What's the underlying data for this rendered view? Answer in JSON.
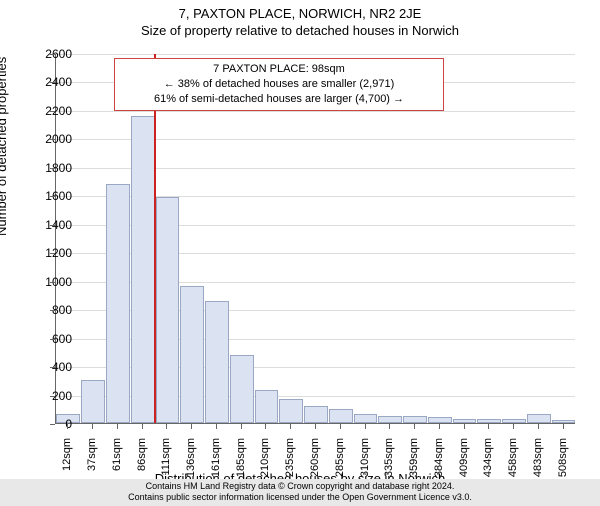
{
  "title": "7, PAXTON PLACE, NORWICH, NR2 2JE",
  "subtitle": "Size of property relative to detached houses in Norwich",
  "chart": {
    "type": "histogram",
    "ylabel": "Number of detached properties",
    "xlabel": "Distribution of detached houses by size in Norwich",
    "ylim": [
      0,
      2600
    ],
    "ytick_step": 200,
    "bar_fill": "#dbe2f1",
    "bar_stroke": "#9aa8c4",
    "grid_color": "#dddddd",
    "axis_color": "#666666",
    "background_color": "#ffffff",
    "categories": [
      "12sqm",
      "37sqm",
      "61sqm",
      "86sqm",
      "111sqm",
      "136sqm",
      "161sqm",
      "185sqm",
      "210sqm",
      "235sqm",
      "260sqm",
      "285sqm",
      "310sqm",
      "335sqm",
      "359sqm",
      "384sqm",
      "409sqm",
      "434sqm",
      "458sqm",
      "483sqm",
      "508sqm"
    ],
    "values": [
      60,
      300,
      1680,
      2160,
      1590,
      960,
      860,
      480,
      230,
      170,
      120,
      100,
      60,
      50,
      50,
      40,
      30,
      25,
      25,
      60,
      20
    ],
    "marker": {
      "position_value": 98,
      "x_axis_min": 12,
      "x_bin_width": 25,
      "color": "#cc2222"
    },
    "annotation": {
      "lines": [
        "7 PAXTON PLACE: 98sqm",
        "← 38% of detached houses are smaller (2,971)",
        "61% of semi-detached houses are larger (4,700) →"
      ],
      "border_color": "#cc4444",
      "background": "#ffffff",
      "fontsize": 11
    }
  },
  "footer": {
    "line1": "Contains HM Land Registry data © Crown copyright and database right 2024.",
    "line2": "Contains public sector information licensed under the Open Government Licence v3.0.",
    "background": "#e8e8e8"
  }
}
